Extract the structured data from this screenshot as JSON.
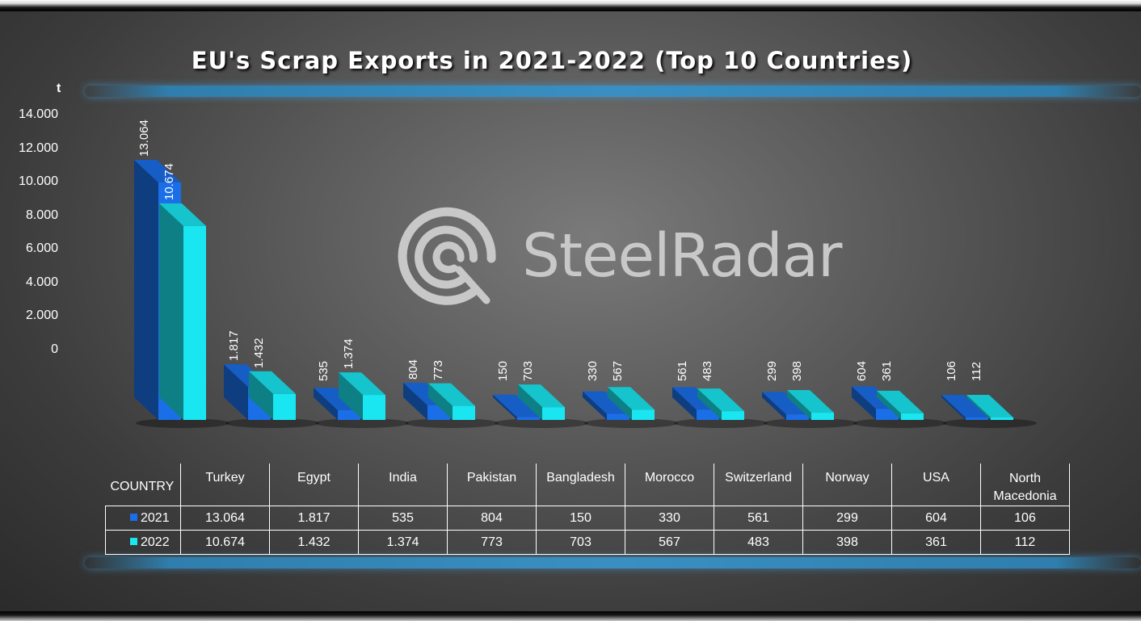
{
  "chart_data": {
    "type": "bar",
    "title": "EU's Scrap Exports in 2021-2022 (Top 10 Countries)",
    "ylabel": "t",
    "ylim": [
      0,
      14000
    ],
    "yticks": [
      "14.000",
      "12.000",
      "10.000",
      "8.000",
      "6.000",
      "4.000",
      "2.000",
      "0"
    ],
    "yticks_values": [
      14000,
      12000,
      10000,
      8000,
      6000,
      4000,
      2000,
      0
    ],
    "categories": [
      "Turkey",
      "Egypt",
      "India",
      "Pakistan",
      "Bangladesh",
      "Morocco",
      "Switzerland",
      "Norway",
      "USA",
      "North Macedonia"
    ],
    "series": [
      {
        "name": "2021",
        "values": [
          13064,
          1817,
          535,
          804,
          150,
          330,
          561,
          299,
          604,
          106
        ],
        "labels": [
          "13.064",
          "1.817",
          "535",
          "804",
          "150",
          "330",
          "561",
          "299",
          "604",
          "106"
        ],
        "color": "#1a6fe8"
      },
      {
        "name": "2022",
        "values": [
          10674,
          1432,
          1374,
          773,
          703,
          567,
          483,
          398,
          361,
          112
        ],
        "labels": [
          "10.674",
          "1.432",
          "1.374",
          "773",
          "703",
          "567",
          "483",
          "398",
          "361",
          "112"
        ],
        "color": "#19e6f0"
      }
    ],
    "table_header": "COUNTRY",
    "grid": false
  },
  "watermark": {
    "text": "SteelRadar"
  }
}
